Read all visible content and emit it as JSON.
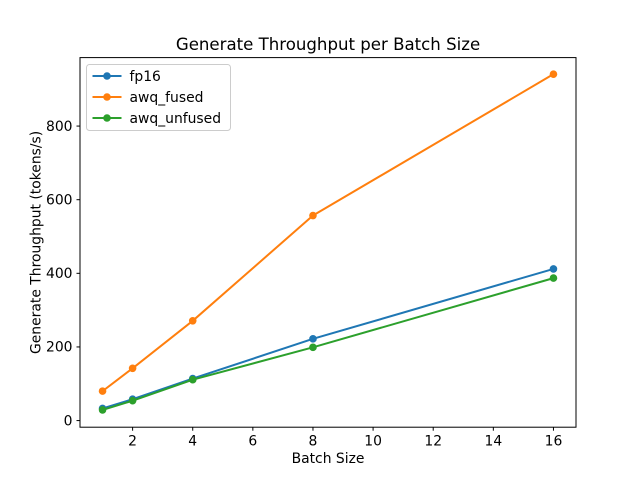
{
  "chart_data": {
    "type": "line",
    "title": "Generate Throughput per Batch Size",
    "xlabel": "Batch Size",
    "ylabel": "Generate Throughput (tokens/s)",
    "x": [
      1,
      2,
      4,
      8,
      16
    ],
    "series": [
      {
        "name": "fp16",
        "color": "#1f77b4",
        "values": [
          33,
          58,
          114,
          222,
          412
        ]
      },
      {
        "name": "awq_fused",
        "color": "#ff7f0e",
        "values": [
          80,
          142,
          271,
          557,
          941
        ]
      },
      {
        "name": "awq_unfused",
        "color": "#2ca02c",
        "values": [
          29,
          54,
          111,
          199,
          387
        ]
      }
    ],
    "xticks": [
      2,
      4,
      6,
      8,
      10,
      12,
      14,
      16
    ],
    "yticks": [
      0,
      200,
      400,
      600,
      800
    ],
    "xlim": [
      0.25,
      16.75
    ],
    "ylim": [
      -18,
      986
    ],
    "grid": false,
    "marker": "o",
    "legend": {
      "position": "upper left",
      "entries": [
        "fp16",
        "awq_fused",
        "awq_unfused"
      ]
    }
  },
  "colors": {
    "background": "#ffffff",
    "text": "#000000",
    "axis": "#000000",
    "legend_border": "#cccccc",
    "legend_fill": "#ffffff"
  }
}
